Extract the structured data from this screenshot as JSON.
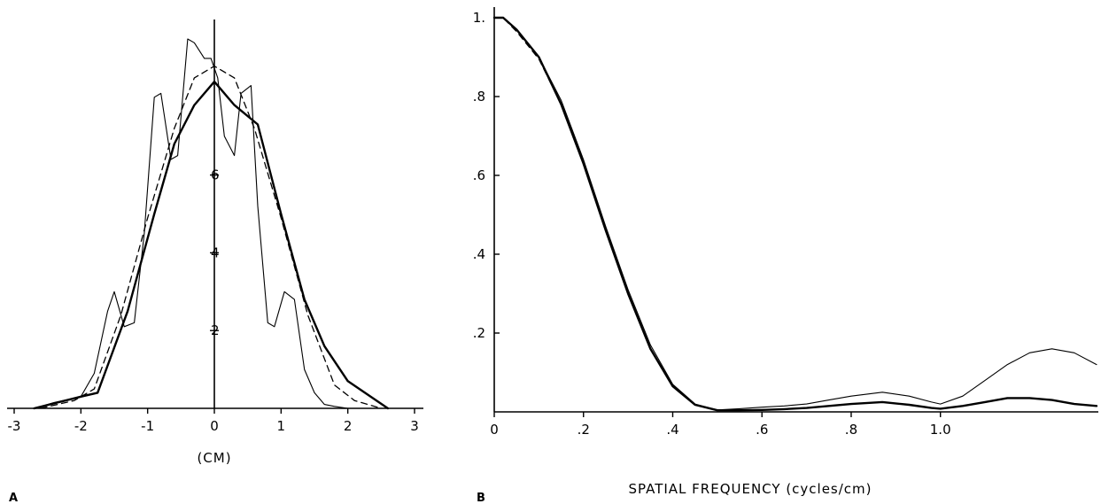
{
  "panels": {
    "a": {
      "label": "A"
    },
    "b": {
      "label": "B"
    }
  },
  "chart_data": [
    {
      "type": "line",
      "panel": "A",
      "title": "",
      "xlabel": "(CM)",
      "ylabel": "",
      "xlim": [
        -3,
        3
      ],
      "ylim": [
        0,
        10
      ],
      "x_ticks": [
        -3,
        -2,
        -1,
        0,
        1,
        2,
        3
      ],
      "x_tick_labels": [
        "-3",
        "-2",
        "-1",
        "0",
        "1",
        "2",
        "3"
      ],
      "y_ticks": [
        2,
        4,
        6
      ],
      "y_tick_labels": [
        "2",
        "4",
        "6"
      ],
      "grid": false,
      "series": [
        {
          "style": "thin-solid",
          "x": [
            -2.7,
            -2.4,
            -2.0,
            -1.8,
            -1.6,
            -1.5,
            -1.35,
            -1.2,
            -1.05,
            -0.9,
            -0.8,
            -0.65,
            -0.55,
            -0.4,
            -0.3,
            -0.15,
            -0.05,
            0.05,
            0.15,
            0.3,
            0.4,
            0.55,
            0.65,
            0.8,
            0.9,
            1.05,
            1.2,
            1.35,
            1.5,
            1.65,
            1.8,
            2.0,
            2.3,
            2.6
          ],
          "y": [
            0.0,
            0.15,
            0.3,
            0.9,
            2.5,
            3.0,
            2.1,
            2.2,
            4.5,
            8.0,
            8.1,
            6.4,
            6.5,
            9.5,
            9.4,
            9.0,
            9.0,
            8.5,
            7.0,
            6.5,
            8.1,
            8.3,
            5.2,
            2.2,
            2.1,
            3.0,
            2.8,
            1.0,
            0.4,
            0.1,
            0.05,
            0.0,
            0.0,
            0.0
          ]
        },
        {
          "style": "thick-solid",
          "x": [
            -2.7,
            -2.0,
            -1.75,
            -1.3,
            -0.9,
            -0.6,
            -0.3,
            0.0,
            0.3,
            0.65,
            1.0,
            1.35,
            1.65,
            2.0,
            2.6
          ],
          "y": [
            0.0,
            0.3,
            0.4,
            2.5,
            5.0,
            6.8,
            7.8,
            8.4,
            7.8,
            7.3,
            5.0,
            2.8,
            1.6,
            0.7,
            0.0
          ]
        },
        {
          "style": "dashed",
          "x": [
            -2.6,
            -2.1,
            -1.8,
            -1.4,
            -1.0,
            -0.6,
            -0.3,
            0.0,
            0.3,
            0.6,
            1.0,
            1.4,
            1.8,
            2.1,
            2.5
          ],
          "y": [
            0.0,
            0.2,
            0.5,
            2.4,
            4.9,
            7.2,
            8.5,
            8.8,
            8.5,
            7.2,
            4.9,
            2.4,
            0.6,
            0.2,
            0.0
          ]
        }
      ]
    },
    {
      "type": "line",
      "panel": "B",
      "title": "",
      "xlabel": "SPATIAL FREQUENCY (cycles/cm)",
      "ylabel": "",
      "xlim": [
        0,
        1.35
      ],
      "ylim": [
        0,
        1.0
      ],
      "x_ticks": [
        0,
        0.2,
        0.4,
        0.6,
        0.8,
        1.0
      ],
      "x_tick_labels": [
        "0",
        ".2",
        ".4",
        ".6",
        ".8",
        "1.0"
      ],
      "y_ticks": [
        0.2,
        0.4,
        0.6,
        0.8,
        1.0
      ],
      "y_tick_labels": [
        ".2",
        ".4",
        ".6",
        ".8",
        "1."
      ],
      "grid": false,
      "series": [
        {
          "style": "thin-solid",
          "x": [
            0,
            0.02,
            0.05,
            0.1,
            0.15,
            0.2,
            0.25,
            0.3,
            0.35,
            0.4,
            0.45,
            0.5,
            0.55,
            0.6,
            0.65,
            0.7,
            0.75,
            0.8,
            0.87,
            0.93,
            0.98,
            1.0,
            1.05,
            1.1,
            1.15,
            1.2,
            1.25,
            1.3,
            1.35
          ],
          "y": [
            1.0,
            1.0,
            0.97,
            0.9,
            0.79,
            0.64,
            0.47,
            0.31,
            0.17,
            0.07,
            0.02,
            0.005,
            0.008,
            0.012,
            0.015,
            0.02,
            0.03,
            0.04,
            0.05,
            0.04,
            0.025,
            0.02,
            0.04,
            0.08,
            0.12,
            0.15,
            0.16,
            0.15,
            0.12
          ]
        },
        {
          "style": "thick-solid",
          "x": [
            0,
            0.02,
            0.05,
            0.1,
            0.15,
            0.2,
            0.25,
            0.3,
            0.35,
            0.4,
            0.45,
            0.5,
            0.55,
            0.6,
            0.65,
            0.7,
            0.75,
            0.8,
            0.87,
            0.93,
            0.98,
            1.0,
            1.05,
            1.1,
            1.15,
            1.2,
            1.25,
            1.3,
            1.35
          ],
          "y": [
            1.0,
            1.0,
            0.97,
            0.9,
            0.78,
            0.63,
            0.46,
            0.3,
            0.16,
            0.065,
            0.018,
            0.004,
            0.004,
            0.005,
            0.007,
            0.01,
            0.015,
            0.02,
            0.025,
            0.018,
            0.01,
            0.008,
            0.015,
            0.025,
            0.035,
            0.035,
            0.03,
            0.02,
            0.015
          ]
        },
        {
          "style": "dashed",
          "x": [
            0,
            0.02,
            0.05,
            0.1,
            0.15,
            0.2,
            0.25,
            0.3,
            0.35,
            0.4,
            0.45,
            0.5,
            0.55
          ],
          "y": [
            1.0,
            1.0,
            0.965,
            0.895,
            0.78,
            0.63,
            0.46,
            0.3,
            0.16,
            0.065,
            0.018,
            0.004,
            0.004
          ]
        }
      ]
    }
  ]
}
